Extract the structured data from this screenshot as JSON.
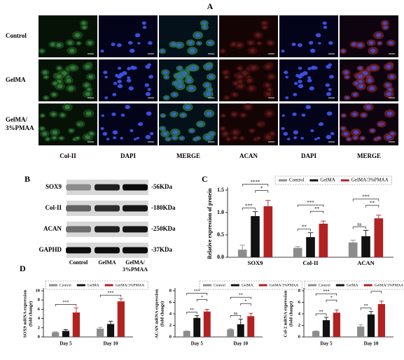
{
  "panel_a": {
    "letter": "A",
    "rows": [
      [
        "Control"
      ],
      [
        "GelMA"
      ],
      [
        "GelMA/",
        "3%PMAA"
      ]
    ],
    "columns": [
      "Col-II",
      "DAPI",
      "MERGE",
      "ACAN",
      "DAPI",
      "MERGE"
    ]
  },
  "panel_b": {
    "letter": "B",
    "bands": [
      {
        "protein": "SOX9",
        "size": "-56KDa"
      },
      {
        "protein": "Col-II",
        "size": "-180KDa"
      },
      {
        "protein": "ACAN",
        "size": "-250KDa"
      },
      {
        "protein": "GAPHD",
        "size": "-37KDa"
      }
    ],
    "lanes": [
      [
        "Control"
      ],
      [
        "GelMA"
      ],
      [
        "GelMA/",
        "3%PMAA"
      ]
    ]
  },
  "chart_data": [
    {
      "type": "bar",
      "panel": "C",
      "ylabel": [
        "Relative expression of protein"
      ],
      "categories": [
        "SOX9",
        "Col-II",
        "ACAN"
      ],
      "ylim": [
        0,
        1.5
      ],
      "yticks": [
        {
          "value": 0,
          "label": "0.0"
        },
        0.5,
        {
          "value": 1,
          "label": "1.0"
        },
        1.5
      ],
      "series": [
        {
          "name": "Control",
          "color": "#8c8c8c",
          "values": [
            0.17,
            0.21,
            0.33
          ],
          "errors": [
            0.1,
            0.03,
            0.05
          ]
        },
        {
          "name": "GelMA",
          "color": "#111111",
          "values": [
            0.92,
            0.45,
            0.47
          ],
          "errors": [
            0.1,
            0.1,
            0.13
          ]
        },
        {
          "name": "GelMA/3%PMAA",
          "color": "#b22222",
          "values": [
            1.14,
            0.75,
            0.87
          ],
          "errors": [
            0.13,
            0.06,
            0.07
          ]
        }
      ],
      "significance": [
        {
          "group": 0,
          "from": 0,
          "to": 1,
          "label": "***"
        },
        {
          "group": 0,
          "from": 1,
          "to": 2,
          "label": "*"
        },
        {
          "group": 0,
          "from": 0,
          "to": 2,
          "label": "****"
        },
        {
          "group": 1,
          "from": 0,
          "to": 1,
          "label": "**"
        },
        {
          "group": 1,
          "from": 1,
          "to": 2,
          "label": "**"
        },
        {
          "group": 1,
          "from": 0,
          "to": 2,
          "label": "***"
        },
        {
          "group": 2,
          "from": 0,
          "to": 1,
          "label": "ns"
        },
        {
          "group": 2,
          "from": 1,
          "to": 2,
          "label": "**"
        },
        {
          "group": 2,
          "from": 0,
          "to": 2,
          "label": "***"
        }
      ]
    },
    {
      "type": "bar",
      "panel": "D",
      "ylabel": [
        "SOX9 mRNA expression",
        "(fold change)"
      ],
      "categories": [
        "Day 5",
        "Day 10"
      ],
      "ylim": [
        0,
        10
      ],
      "yticks": [
        0,
        2,
        4,
        6,
        8,
        10
      ],
      "series": [
        {
          "name": "Control",
          "color": "#8c8c8c",
          "values": [
            1.0,
            1.8
          ],
          "errors": [
            0.1,
            0.3
          ]
        },
        {
          "name": "GelMA",
          "color": "#111111",
          "values": [
            1.3,
            2.8
          ],
          "errors": [
            0.3,
            0.6
          ]
        },
        {
          "name": "GelMA/3%PMAA",
          "color": "#b22222",
          "values": [
            5.3,
            7.7
          ],
          "errors": [
            1.0,
            0.6
          ]
        }
      ],
      "significance": [
        {
          "group": 0,
          "from": 0,
          "to": 2,
          "label": "***"
        },
        {
          "group": 1,
          "from": 0,
          "to": 2,
          "label": "***"
        }
      ]
    },
    {
      "type": "bar",
      "panel": null,
      "ylabel": [
        "ACAN mRNA expression",
        "(fold change)"
      ],
      "categories": [
        "Day 5",
        "Day 10"
      ],
      "ylim": [
        0,
        8
      ],
      "yticks": [
        0,
        2,
        4,
        6,
        8
      ],
      "series": [
        {
          "name": "Control",
          "color": "#8c8c8c",
          "values": [
            1.0,
            1.3
          ],
          "errors": [
            0.05,
            0.1
          ]
        },
        {
          "name": "GelMA",
          "color": "#111111",
          "values": [
            3.3,
            2.2
          ],
          "errors": [
            0.4,
            0.9
          ]
        },
        {
          "name": "GelMA/3%PMAA",
          "color": "#b22222",
          "values": [
            4.4,
            3.6
          ],
          "errors": [
            0.4,
            0.5
          ]
        }
      ],
      "significance": [
        {
          "group": 0,
          "from": 0,
          "to": 1,
          "label": "**"
        },
        {
          "group": 0,
          "from": 1,
          "to": 2,
          "label": "*"
        },
        {
          "group": 0,
          "from": 0,
          "to": 2,
          "label": "***"
        },
        {
          "group": 1,
          "from": 0,
          "to": 1,
          "label": "ns"
        },
        {
          "group": 1,
          "from": 1,
          "to": 2,
          "label": "*"
        },
        {
          "group": 1,
          "from": 0,
          "to": 2,
          "label": "**"
        }
      ]
    },
    {
      "type": "bar",
      "panel": null,
      "ylabel": [
        "Col-2 mRNA expression",
        "(fold change)"
      ],
      "categories": [
        "Day 5",
        "Day 10"
      ],
      "ylim": [
        0,
        8
      ],
      "yticks": [
        0,
        2,
        4,
        6,
        8
      ],
      "series": [
        {
          "name": "Control",
          "color": "#8c8c8c",
          "values": [
            1.0,
            1.8
          ],
          "errors": [
            0.05,
            0.3
          ]
        },
        {
          "name": "GelMA",
          "color": "#111111",
          "values": [
            2.9,
            3.9
          ],
          "errors": [
            0.5,
            0.5
          ]
        },
        {
          "name": "GelMA/3%PMAA",
          "color": "#b22222",
          "values": [
            4.2,
            5.7
          ],
          "errors": [
            0.5,
            0.5
          ]
        }
      ],
      "significance": [
        {
          "group": 0,
          "from": 0,
          "to": 1,
          "label": "**"
        },
        {
          "group": 0,
          "from": 1,
          "to": 2,
          "label": "*"
        },
        {
          "group": 0,
          "from": 0,
          "to": 2,
          "label": "***"
        },
        {
          "group": 1,
          "from": 0,
          "to": 1,
          "label": "**"
        },
        {
          "group": 1,
          "from": 1,
          "to": 2,
          "label": "*"
        },
        {
          "group": 1,
          "from": 0,
          "to": 2,
          "label": "***"
        }
      ]
    }
  ]
}
